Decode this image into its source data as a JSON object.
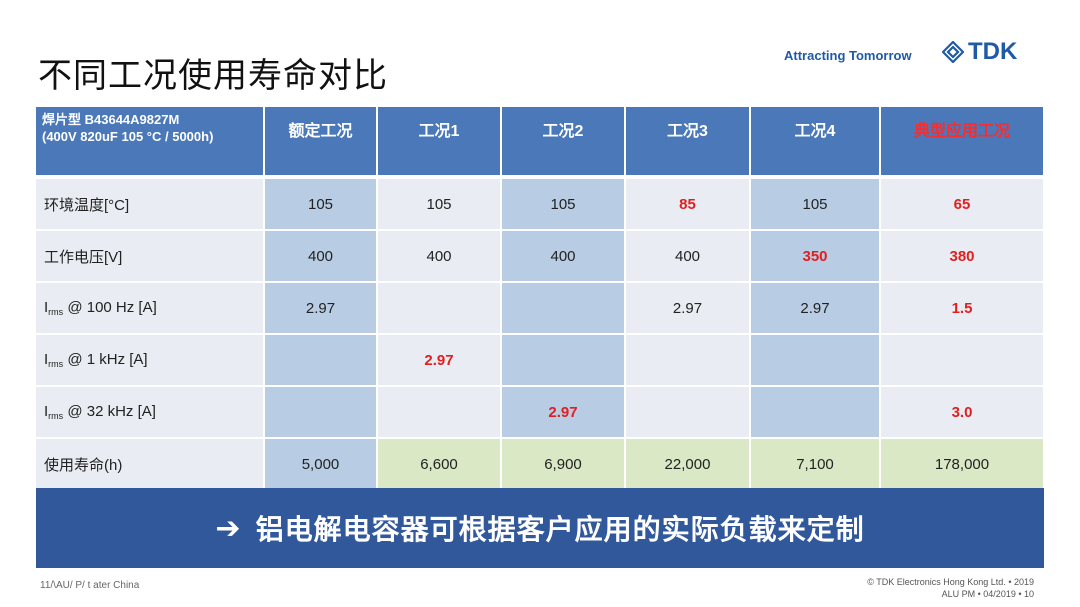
{
  "title": "不同工况使用寿命对比",
  "brand": {
    "tagline": "Attracting Tomorrow",
    "logo_text": "TDK",
    "logo_icon": "tdk-diamond-icon",
    "color": "#1f5aa6"
  },
  "table": {
    "header_product_line1": "焊片型 B43644A9827M",
    "header_product_line2": "(400V 820uF 105 °C / 5000h)",
    "columns": [
      "额定工况",
      "工况1",
      "工况2",
      "工况3",
      "工况4",
      "典型应用工况"
    ],
    "rows": {
      "temp": {
        "label": "环境温度[°C]",
        "values": [
          "105",
          "105",
          "105",
          "85",
          "105",
          "65"
        ]
      },
      "voltage": {
        "label": "工作电压[V]",
        "values": [
          "400",
          "400",
          "400",
          "400",
          "350",
          "380"
        ]
      },
      "irms100": {
        "label_i": "I",
        "label_sub": "rms",
        "label_rest": " @ 100 Hz [A]",
        "values": [
          "2.97",
          "",
          "",
          "2.97",
          "2.97",
          "1.5"
        ]
      },
      "irms1k": {
        "label_i": "I",
        "label_sub": "rms",
        "label_rest": " @ 1 kHz [A]",
        "values": [
          "",
          "2.97",
          "",
          "",
          "",
          ""
        ]
      },
      "irms32k": {
        "label_i": "I",
        "label_sub": "rms",
        "label_rest": " @ 32 kHz [A]",
        "values": [
          "",
          "",
          "2.97",
          "",
          "",
          "3.0"
        ]
      },
      "life": {
        "label": "使用寿命(h)",
        "values": [
          "5,000",
          "6,600",
          "6,900",
          "22,000",
          "7,100",
          "178,000"
        ]
      }
    },
    "colors": {
      "header": "#4a78b8",
      "blue_cell": "#b8cce4",
      "grey_cell": "#e9ecf2",
      "green_cell": "#dbe8c5",
      "highlight": "#e02020"
    }
  },
  "banner": {
    "arrow": "➔",
    "text": "铝电解电容器可根据客户应用的实际负载来定制",
    "color": "#30589a"
  },
  "footer": {
    "left": "11/\\AU/ P/ t  ater  China",
    "right_line1": "© TDK Electronics Hong Kong Ltd.  • 2019",
    "right_line2": "ALU PM  • 04/2019 • 10"
  }
}
